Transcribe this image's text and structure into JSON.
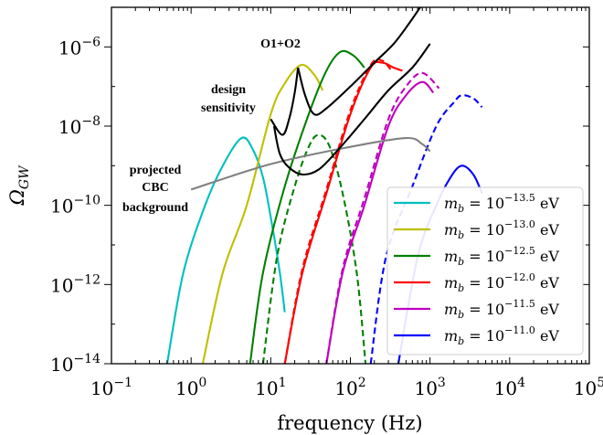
{
  "chart_data": {
    "type": "line",
    "xlabel": "frequency (Hz)",
    "ylabel": "Ω_GW",
    "xscale": "log",
    "yscale": "log",
    "xlim": [
      0.1,
      100000
    ],
    "ylim": [
      1e-14,
      1e-05
    ],
    "x_tick_labels": [
      {
        "value": 0.1,
        "base": "10",
        "exp": "−1"
      },
      {
        "value": 1,
        "base": "10",
        "exp": "0"
      },
      {
        "value": 10,
        "base": "10",
        "exp": "1"
      },
      {
        "value": 100,
        "base": "10",
        "exp": "2"
      },
      {
        "value": 1000,
        "base": "10",
        "exp": "3"
      },
      {
        "value": 10000,
        "base": "10",
        "exp": "4"
      },
      {
        "value": 100000,
        "base": "10",
        "exp": "5"
      }
    ],
    "y_tick_labels": [
      {
        "value": 1e-06,
        "base": "10",
        "exp": "−6"
      },
      {
        "value": 1e-08,
        "base": "10",
        "exp": "−8"
      },
      {
        "value": 1e-10,
        "base": "10",
        "exp": "−10"
      },
      {
        "value": 1e-12,
        "base": "10",
        "exp": "−12"
      },
      {
        "value": 1e-14,
        "base": "10",
        "exp": "−14"
      }
    ],
    "legend_position": "lower right",
    "legend": [
      {
        "label_prefix": "m",
        "label_sub": "b",
        "label_eq": " = 10",
        "label_exp": "−13.5",
        "label_unit": " eV",
        "color": "#00bfbf"
      },
      {
        "label_prefix": "m",
        "label_sub": "b",
        "label_eq": " = 10",
        "label_exp": "−13.0",
        "label_unit": " eV",
        "color": "#bfbf00"
      },
      {
        "label_prefix": "m",
        "label_sub": "b",
        "label_eq": " = 10",
        "label_exp": "−12.5",
        "label_unit": " eV",
        "color": "#008000"
      },
      {
        "label_prefix": "m",
        "label_sub": "b",
        "label_eq": " = 10",
        "label_exp": "−12.0",
        "label_unit": " eV",
        "color": "#ff0000"
      },
      {
        "label_prefix": "m",
        "label_sub": "b",
        "label_eq": " = 10",
        "label_exp": "−11.5",
        "label_unit": " eV",
        "color": "#bf00bf"
      },
      {
        "label_prefix": "m",
        "label_sub": "b",
        "label_eq": " = 10",
        "label_exp": "−11.0",
        "label_unit": " eV",
        "color": "#0000ff"
      }
    ],
    "annotations": {
      "o1o2": "O1+O2",
      "design_1": "design",
      "design_2": "sensitivity",
      "cbc_1": "projected",
      "cbc_2": "CBC",
      "cbc_3": "background"
    },
    "series": [
      {
        "id": "cyan-solid",
        "color": "#00bfbf",
        "dash": false,
        "points": [
          [
            0.5,
            1e-14
          ],
          [
            0.8,
            2e-12
          ],
          [
            1.5,
            1e-10
          ],
          [
            2.5,
            1e-09
          ],
          [
            4.3,
            5e-09
          ],
          [
            6,
            2.5e-09
          ],
          [
            8,
            5e-10
          ],
          [
            10,
            5e-11
          ],
          [
            13,
            2e-12
          ],
          [
            15,
            2e-13
          ]
        ]
      },
      {
        "id": "yellow-solid",
        "color": "#bfbf00",
        "dash": false,
        "points": [
          [
            1.4,
            1e-14
          ],
          [
            2.5,
            2e-12
          ],
          [
            5,
            1e-10
          ],
          [
            10,
            2e-08
          ],
          [
            15,
            1.2e-07
          ],
          [
            24,
            3.5e-07
          ],
          [
            35,
            2e-07
          ],
          [
            45,
            8e-08
          ]
        ]
      },
      {
        "id": "green-solid",
        "color": "#008000",
        "dash": false,
        "points": [
          [
            5.5,
            1e-14
          ],
          [
            8,
            2e-12
          ],
          [
            15,
            3e-10
          ],
          [
            30,
            2e-08
          ],
          [
            50,
            2.5e-07
          ],
          [
            75,
            7.5e-07
          ],
          [
            110,
            6e-07
          ],
          [
            150,
            3e-07
          ]
        ]
      },
      {
        "id": "green-dashed",
        "color": "#008000",
        "dash": true,
        "points": [
          [
            8,
            1e-14
          ],
          [
            12,
            5e-12
          ],
          [
            20,
            3e-10
          ],
          [
            30,
            3e-09
          ],
          [
            40,
            6e-09
          ],
          [
            55,
            3e-09
          ],
          [
            80,
            2e-10
          ],
          [
            120,
            2e-12
          ],
          [
            155,
            1e-14
          ]
        ]
      },
      {
        "id": "red-solid",
        "color": "#ff0000",
        "dash": false,
        "points": [
          [
            15,
            1e-14
          ],
          [
            25,
            2e-12
          ],
          [
            50,
            2e-10
          ],
          [
            100,
            2e-08
          ],
          [
            180,
            3e-07
          ],
          [
            250,
            4e-07
          ],
          [
            350,
            3e-07
          ],
          [
            450,
            2.5e-07
          ]
        ]
      },
      {
        "id": "red-dashed",
        "color": "#ff0000",
        "dash": true,
        "points": [
          [
            15,
            1e-14
          ],
          [
            25,
            2.5e-12
          ],
          [
            50,
            2.5e-10
          ],
          [
            100,
            2.5e-08
          ],
          [
            180,
            3.5e-07
          ],
          [
            250,
            4.5e-07
          ],
          [
            330,
            2.5e-07
          ]
        ]
      },
      {
        "id": "magenta-solid",
        "color": "#bf00bf",
        "dash": false,
        "points": [
          [
            50,
            1e-14
          ],
          [
            80,
            2e-12
          ],
          [
            150,
            1e-10
          ],
          [
            300,
            1e-08
          ],
          [
            500,
            6e-08
          ],
          [
            800,
            1.3e-07
          ],
          [
            1100,
            7e-08
          ]
        ]
      },
      {
        "id": "magenta-dashed",
        "color": "#bf00bf",
        "dash": true,
        "points": [
          [
            50,
            1e-14
          ],
          [
            80,
            2.5e-12
          ],
          [
            150,
            1.5e-10
          ],
          [
            300,
            1.5e-08
          ],
          [
            500,
            1e-07
          ],
          [
            800,
            2.2e-07
          ],
          [
            1300,
            9e-08
          ]
        ]
      },
      {
        "id": "blue-dashed",
        "color": "#0000ff",
        "dash": true,
        "points": [
          [
            180,
            1e-14
          ],
          [
            280,
            5e-12
          ],
          [
            600,
            3e-10
          ],
          [
            1200,
            1e-08
          ],
          [
            2000,
            4e-08
          ],
          [
            2500,
            6e-08
          ],
          [
            3500,
            5e-08
          ],
          [
            4500,
            3e-08
          ]
        ]
      },
      {
        "id": "blue-solid",
        "color": "#0000ff",
        "dash": false,
        "points": [
          [
            400,
            1e-14
          ],
          [
            700,
            5e-12
          ],
          [
            1200,
            1e-10
          ],
          [
            1800,
            5e-10
          ],
          [
            2500,
            1e-09
          ],
          [
            3500,
            6e-10
          ],
          [
            4500,
            2e-10
          ]
        ]
      },
      {
        "id": "gray-cbc",
        "color": "#808080",
        "dash": false,
        "points": [
          [
            1,
            2.5e-10
          ],
          [
            10,
            1.1e-09
          ],
          [
            100,
            3e-09
          ],
          [
            500,
            5e-09
          ],
          [
            800,
            3.5e-09
          ],
          [
            1000,
            2.3e-09
          ]
        ]
      },
      {
        "id": "black-o1o2",
        "color": "#000000",
        "dash": false,
        "points": [
          [
            11,
            1e-08
          ],
          [
            13,
            2e-09
          ],
          [
            17,
            9e-10
          ],
          [
            25,
            6e-10
          ],
          [
            40,
            8e-10
          ],
          [
            70,
            2.5e-09
          ],
          [
            150,
            1.5e-08
          ],
          [
            300,
            8e-08
          ],
          [
            600,
            3e-07
          ],
          [
            1000,
            1.2e-06
          ]
        ]
      },
      {
        "id": "black-design-low",
        "color": "#000000",
        "dash": false,
        "points": [
          [
            10,
            1.5e-08
          ],
          [
            14,
            6e-09
          ],
          [
            17,
            1.5e-08
          ],
          [
            20,
            7e-08
          ],
          [
            22,
            3e-07
          ]
        ]
      },
      {
        "id": "black-design",
        "color": "#000000",
        "dash": false,
        "points": [
          [
            22,
            3e-07
          ],
          [
            27,
            6e-08
          ],
          [
            35,
            2e-08
          ],
          [
            50,
            2.8e-08
          ],
          [
            100,
            1e-07
          ],
          [
            200,
            4e-07
          ],
          [
            350,
            1.2e-06
          ],
          [
            550,
            4e-06
          ],
          [
            800,
            1.2e-05
          ]
        ]
      }
    ]
  }
}
